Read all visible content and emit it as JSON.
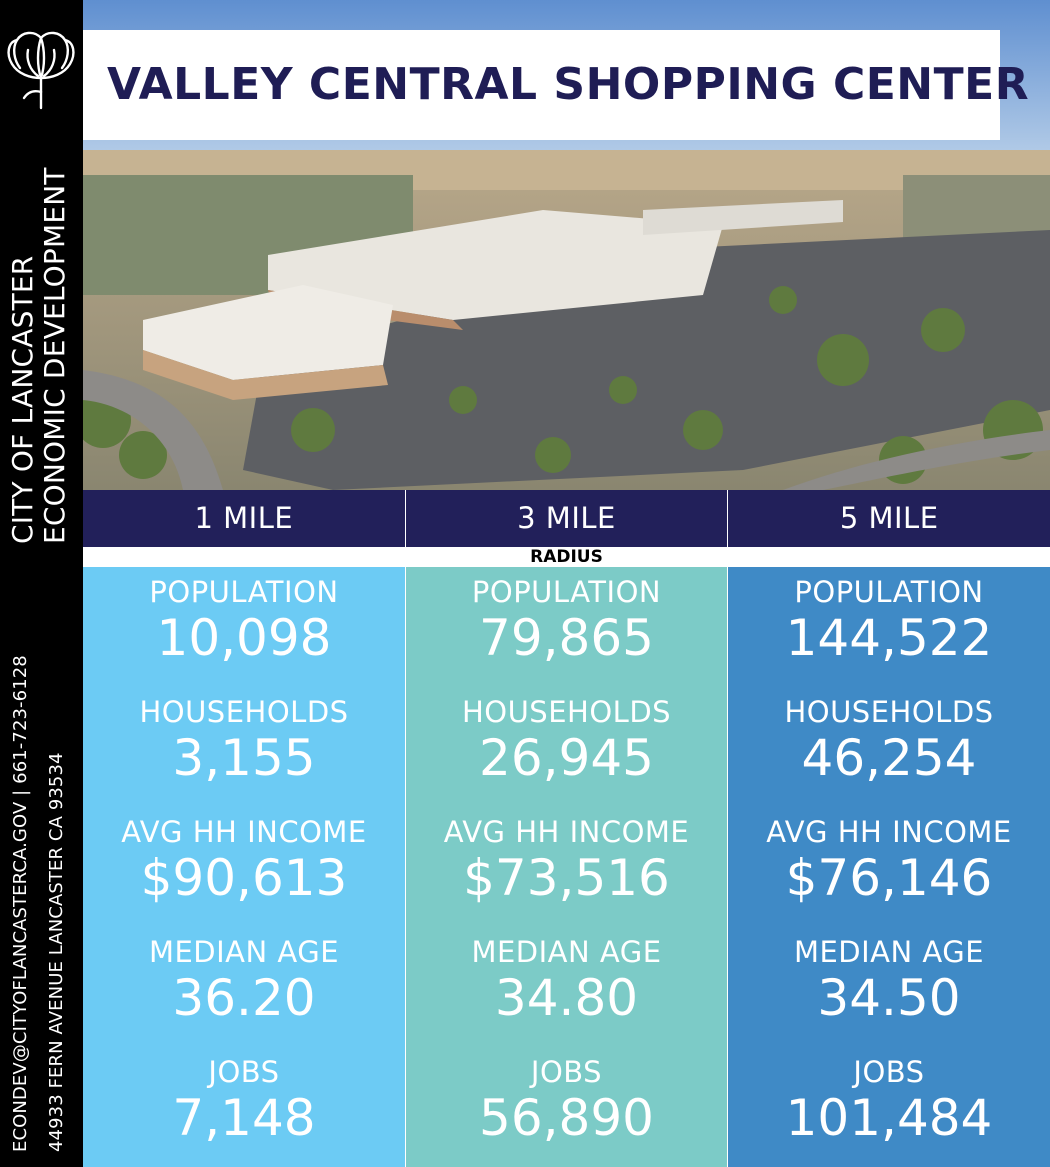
{
  "title": "VALLEY CENTRAL SHOPPING CENTER",
  "sidebar": {
    "org_line1": "CITY OF LANCASTER",
    "org_line2": "ECONOMIC DEVELOPMENT",
    "contact_line1": "ECONDEV@CITYOFLANCASTERCA.GOV | 661-723-6128",
    "contact_line2": "44933 FERN AVENUE LANCASTER CA 93534",
    "logo_icon": "poppy-flower-icon"
  },
  "radius": {
    "label": "RADIUS",
    "columns": [
      "1 MILE",
      "3 MILE",
      "5 MILE"
    ]
  },
  "stats": [
    {
      "population_label": "POPULATION",
      "population": "10,098",
      "households_label": "HOUSEHOLDS",
      "households": "3,155",
      "income_label": "AVG HH INCOME",
      "income": "$90,613",
      "age_label": "MEDIAN AGE",
      "age": "36.20",
      "jobs_label": "JOBS",
      "jobs": "7,148"
    },
    {
      "population_label": "POPULATION",
      "population": "79,865",
      "households_label": "HOUSEHOLDS",
      "households": "26,945",
      "income_label": "AVG HH INCOME",
      "income": "$73,516",
      "age_label": "MEDIAN AGE",
      "age": "34.80",
      "jobs_label": "JOBS",
      "jobs": "56,890"
    },
    {
      "population_label": "POPULATION",
      "population": "144,522",
      "households_label": "HOUSEHOLDS",
      "households": "46,254",
      "income_label": "AVG HH INCOME",
      "income": "$76,146",
      "age_label": "MEDIAN AGE",
      "age": "34.50",
      "jobs_label": "JOBS",
      "jobs": "101,484"
    }
  ],
  "colors": {
    "navy": "#22205a",
    "title": "#1f1d55",
    "col1": "#6ccbf4",
    "col2": "#7ccbc7",
    "col3": "#3f8ac6",
    "sidebar": "#000000"
  }
}
